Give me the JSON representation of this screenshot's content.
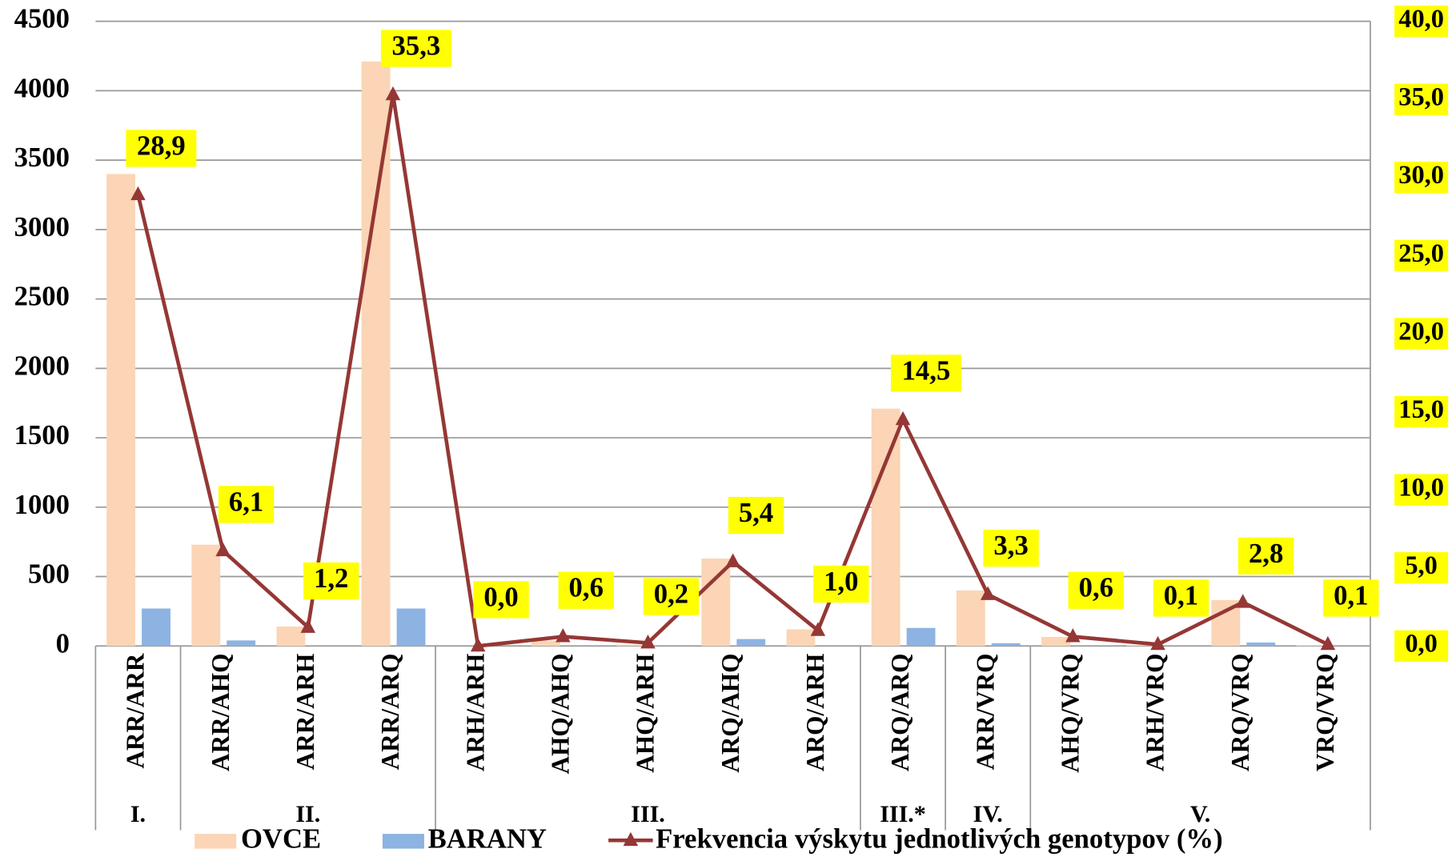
{
  "chart_data": {
    "type": "bar",
    "categories": [
      "ARR/ARR",
      "ARR/AHQ",
      "ARR/ARH",
      "ARR/ARQ",
      "ARH/ARH",
      "AHQ/AHQ",
      "AHQ/ARH",
      "ARQ/AHQ",
      "ARQ/ARH",
      "ARQ/ARQ",
      "ARR/VRQ",
      "AHQ/VRQ",
      "ARH/VRQ",
      "ARQ/VRQ",
      "VRQ/VRQ"
    ],
    "category_groups": [
      "I.",
      "II.",
      "II.",
      "II.",
      "III.",
      "III.",
      "III.",
      "III.",
      "III.",
      "III.*",
      "IV.",
      "V.",
      "V.",
      "V.",
      "V."
    ],
    "series": [
      {
        "name": "OVCE",
        "color": "#fbd5b5",
        "values": [
          3400,
          730,
          140,
          4210,
          0,
          40,
          10,
          630,
          120,
          1710,
          400,
          65,
          5,
          330,
          5
        ]
      },
      {
        "name": "BARANY",
        "color": "#8db3e2",
        "values": [
          270,
          40,
          0,
          270,
          0,
          0,
          0,
          50,
          0,
          130,
          20,
          0,
          0,
          25,
          0
        ]
      },
      {
        "name": "Frekvencia výskytu jednotlivých genotypov (%)",
        "color": "#953735",
        "type": "line",
        "axis": "y2",
        "values": [
          28.9,
          6.1,
          1.2,
          35.3,
          0.0,
          0.6,
          0.2,
          5.4,
          1.0,
          14.5,
          3.3,
          0.6,
          0.1,
          2.8,
          0.1
        ],
        "value_labels": [
          "28,9",
          "6,1",
          "1,2",
          "35,3",
          "0,0",
          "0,6",
          "0,2",
          "5,4",
          "1,0",
          "14,5",
          "3,3",
          "0,6",
          "0,1",
          "2,8",
          "0,1"
        ]
      }
    ],
    "ylim": [
      0,
      4500
    ],
    "yticks": [
      0,
      500,
      1000,
      1500,
      2000,
      2500,
      3000,
      3500,
      4000,
      4500
    ],
    "y2lim": [
      0,
      40
    ],
    "y2ticks": [
      {
        "value": 0,
        "label": "0,0"
      },
      {
        "value": 5,
        "label": "5,0"
      },
      {
        "value": 10,
        "label": "10,0"
      },
      {
        "value": 15,
        "label": "15,0"
      },
      {
        "value": 20,
        "label": "20,0"
      },
      {
        "value": 25,
        "label": "25,0"
      },
      {
        "value": 30,
        "label": "30,0"
      },
      {
        "value": 35,
        "label": "35,0"
      },
      {
        "value": 40,
        "label": "40,0"
      }
    ],
    "grid": true,
    "legend": "bottom",
    "label_background": "#ffff00"
  }
}
